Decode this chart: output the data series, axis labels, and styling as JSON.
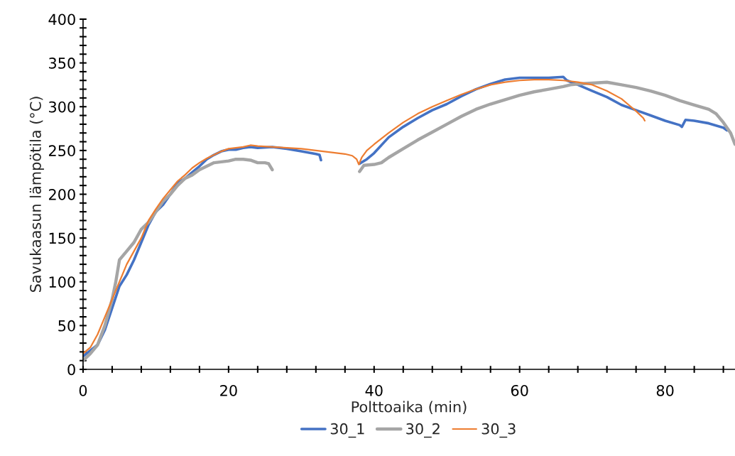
{
  "chart_data": {
    "type": "line",
    "xlabel": "Polttoaika (min)",
    "ylabel": "Savukaasun lämpötila (°C)",
    "xlim": [
      0,
      89.6
    ],
    "ylim": [
      0,
      400
    ],
    "xticks": [
      0,
      {
        "value": 4,
        "label": null
      },
      {
        "value": 8,
        "label": null
      },
      {
        "value": 12,
        "label": null
      },
      {
        "value": 16,
        "label": null
      },
      20,
      {
        "value": 24,
        "label": null
      },
      {
        "value": 28,
        "label": null
      },
      {
        "value": 32,
        "label": null
      },
      {
        "value": 36,
        "label": null
      },
      40,
      {
        "value": 44,
        "label": null
      },
      {
        "value": 48,
        "label": null
      },
      {
        "value": 52,
        "label": null
      },
      {
        "value": 56,
        "label": null
      },
      60,
      {
        "value": 64,
        "label": null
      },
      {
        "value": 68,
        "label": null
      },
      {
        "value": 72,
        "label": null
      },
      {
        "value": 76,
        "label": null
      },
      80,
      {
        "value": 84,
        "label": null
      },
      {
        "value": 88,
        "label": null
      }
    ],
    "yticks": [
      0,
      {
        "value": 10,
        "label": null
      },
      {
        "value": 20,
        "label": null
      },
      {
        "value": 30,
        "label": null
      },
      {
        "value": 40,
        "label": null
      },
      50,
      {
        "value": 60,
        "label": null
      },
      {
        "value": 70,
        "label": null
      },
      {
        "value": 80,
        "label": null
      },
      {
        "value": 90,
        "label": null
      },
      100,
      {
        "value": 110,
        "label": null
      },
      {
        "value": 120,
        "label": null
      },
      {
        "value": 130,
        "label": null
      },
      {
        "value": 140,
        "label": null
      },
      150,
      {
        "value": 160,
        "label": null
      },
      {
        "value": 170,
        "label": null
      },
      {
        "value": 180,
        "label": null
      },
      {
        "value": 190,
        "label": null
      },
      200,
      {
        "value": 210,
        "label": null
      },
      {
        "value": 220,
        "label": null
      },
      {
        "value": 230,
        "label": null
      },
      {
        "value": 240,
        "label": null
      },
      250,
      {
        "value": 260,
        "label": null
      },
      {
        "value": 270,
        "label": null
      },
      {
        "value": 280,
        "label": null
      },
      {
        "value": 290,
        "label": null
      },
      300,
      {
        "value": 310,
        "label": null
      },
      {
        "value": 320,
        "label": null
      },
      {
        "value": 330,
        "label": null
      },
      {
        "value": 340,
        "label": null
      },
      350,
      {
        "value": 360,
        "label": null
      },
      {
        "value": 370,
        "label": null
      },
      {
        "value": 380,
        "label": null
      },
      {
        "value": 390,
        "label": null
      },
      400
    ],
    "grid": false,
    "legend": "bottom",
    "marker": "none",
    "line_style": "solid",
    "series": [
      {
        "name": "30_1",
        "color": "#4472c4",
        "x": [
          0,
          2,
          3,
          4,
          5,
          6,
          7,
          8,
          9,
          10,
          11,
          12,
          13,
          14,
          15,
          16,
          17,
          18,
          19,
          20,
          21,
          22,
          23,
          24,
          26,
          28,
          30,
          32,
          32.5,
          32.7,
          35,
          38,
          39,
          40,
          42,
          44,
          46,
          48,
          50,
          52,
          54,
          56,
          58,
          60,
          62,
          64,
          66,
          66.5,
          68,
          70,
          72,
          74,
          76,
          78,
          80,
          82,
          82.3,
          82.8,
          84,
          86,
          88,
          88.5
        ],
        "values": [
          15,
          28,
          45,
          70,
          95,
          108,
          125,
          145,
          165,
          180,
          188,
          200,
          213,
          218,
          225,
          232,
          240,
          245,
          249,
          251,
          251,
          253,
          254,
          253,
          254,
          252,
          249,
          246,
          245,
          239,
          null,
          235,
          240,
          247,
          265,
          277,
          287,
          296,
          303,
          312,
          320,
          326,
          331,
          333,
          333,
          333,
          334,
          330,
          325,
          318,
          311,
          302,
          296,
          290,
          284,
          279,
          277,
          285,
          284,
          281,
          276,
          273
        ]
      },
      {
        "name": "30_2",
        "color": "#a5a5a5",
        "x": [
          0,
          1,
          2,
          3,
          4,
          4.5,
          5,
          6,
          7,
          8,
          9,
          10,
          11,
          12,
          13,
          14,
          15,
          16,
          17,
          18,
          19,
          20,
          21,
          22,
          23,
          24,
          25,
          25.5,
          26,
          32,
          38,
          38.6,
          40,
          41,
          42,
          44,
          46,
          48,
          50,
          52,
          54,
          56,
          58,
          60,
          62,
          64,
          66,
          67,
          68,
          70,
          72,
          74,
          76,
          78,
          80,
          82,
          84,
          86,
          87,
          88,
          89,
          89.6
        ],
        "values": [
          10,
          18,
          28,
          50,
          80,
          100,
          125,
          135,
          145,
          160,
          168,
          180,
          192,
          200,
          210,
          218,
          222,
          228,
          232,
          236,
          237,
          238,
          240,
          240,
          239,
          236,
          236,
          235,
          228,
          null,
          226,
          233,
          234,
          236,
          242,
          252,
          262,
          271,
          280,
          289,
          297,
          303,
          308,
          313,
          317,
          320,
          323,
          325,
          326,
          327,
          328,
          325,
          322,
          318,
          313,
          307,
          302,
          297,
          292,
          282,
          270,
          257
        ]
      },
      {
        "name": "30_3",
        "color": "#ed7d31",
        "x": [
          0,
          1,
          2,
          3,
          4,
          5,
          6,
          7,
          8,
          9,
          10,
          11,
          12,
          13,
          14,
          15,
          16,
          17,
          18,
          19,
          20,
          21,
          22,
          23,
          24,
          26,
          28,
          30,
          32,
          34,
          36,
          37,
          37.6,
          37.9,
          38.3,
          39,
          40,
          42,
          44,
          46,
          48,
          50,
          52,
          54,
          56,
          58,
          60,
          62,
          64,
          66,
          68,
          70,
          72,
          74,
          75,
          76,
          77,
          77.2
        ],
        "values": [
          18,
          25,
          40,
          60,
          80,
          100,
          120,
          135,
          150,
          170,
          183,
          195,
          205,
          215,
          222,
          230,
          236,
          241,
          245,
          249,
          252,
          253,
          254,
          256,
          255,
          254,
          253,
          252,
          250,
          248,
          246,
          244,
          240,
          234,
          242,
          250,
          257,
          270,
          282,
          292,
          300,
          307,
          314,
          320,
          325,
          328,
          330,
          331,
          331,
          330,
          328,
          325,
          318,
          309,
          302,
          295,
          287,
          284
        ]
      }
    ]
  }
}
